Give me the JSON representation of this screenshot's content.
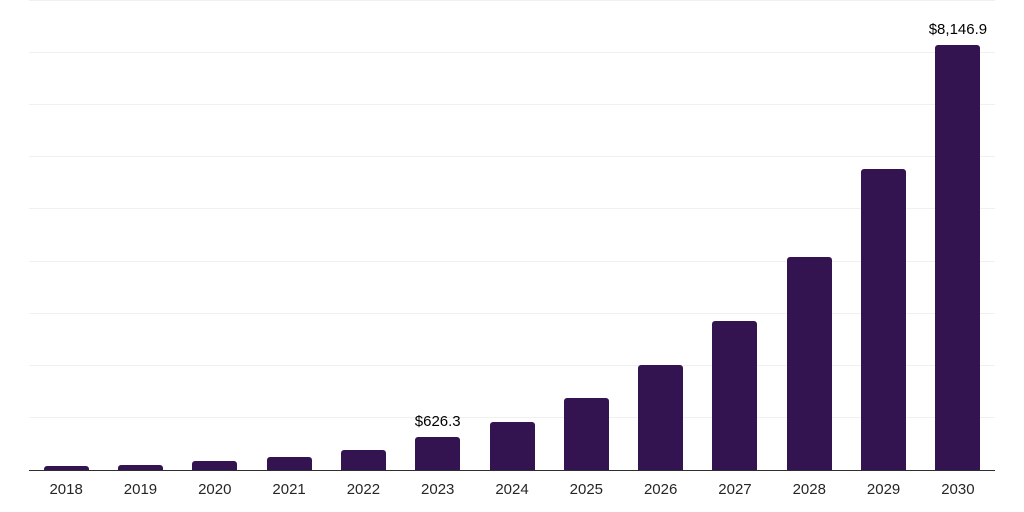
{
  "chart_data": {
    "type": "bar",
    "title": "",
    "xlabel": "",
    "ylabel": "",
    "categories": [
      "2018",
      "2019",
      "2020",
      "2021",
      "2022",
      "2023",
      "2024",
      "2025",
      "2026",
      "2027",
      "2028",
      "2029",
      "2030"
    ],
    "values": [
      71,
      102,
      167,
      249,
      390,
      626.3,
      926,
      1390,
      2007,
      2862,
      4089,
      5784,
      8146.9
    ],
    "value_labels": [
      "",
      "",
      "",
      "",
      "",
      "$626.3",
      "",
      "",
      "",
      "",
      "",
      "",
      "$8,146.9"
    ],
    "ylim": [
      0,
      9000
    ],
    "gridline_interval": 1000,
    "grid": "horizontal",
    "legend_position": "none",
    "colors": {
      "bar": "#331450",
      "axis_line": "#2e2e2e",
      "gridline": "#f0f0f0",
      "tick_label": "#262626",
      "data_label": "#000000",
      "background": "#ffffff"
    }
  }
}
